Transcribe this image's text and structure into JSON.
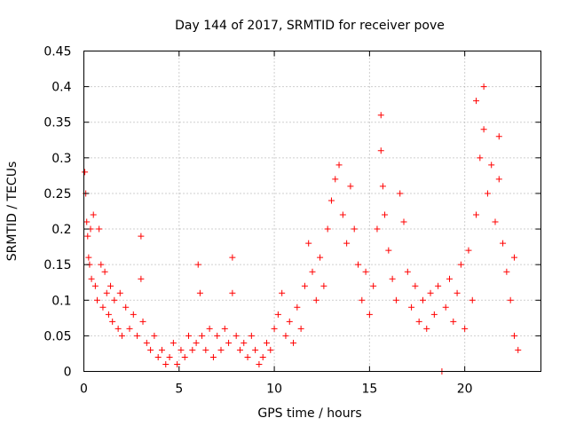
{
  "chart_data": {
    "type": "scatter",
    "title": "Day 144 of 2017, SRMTID for receiver pove",
    "xlabel": "GPS time / hours",
    "ylabel": "SRMTID / TECUs",
    "xlim": [
      0,
      24
    ],
    "ylim": [
      0,
      0.45
    ],
    "grid": true,
    "xticks": [
      0,
      5,
      10,
      15,
      20
    ],
    "xtick_labels": [
      "0",
      "5",
      "10",
      "15",
      "20"
    ],
    "yticks": [
      0,
      0.05,
      0.1,
      0.15,
      0.2,
      0.25,
      0.3,
      0.35,
      0.4,
      0.45
    ],
    "ytick_labels": [
      "0",
      "0.05",
      "0.1",
      "0.15",
      "0.2",
      "0.25",
      "0.3",
      "0.35",
      "0.4",
      "0.45"
    ],
    "marker": "plus",
    "color": "#ff0000",
    "series": [
      {
        "name": "SRMTID",
        "points": [
          [
            0.05,
            0.28
          ],
          [
            0.1,
            0.25
          ],
          [
            0.15,
            0.21
          ],
          [
            0.2,
            0.19
          ],
          [
            0.25,
            0.16
          ],
          [
            0.3,
            0.15
          ],
          [
            0.35,
            0.2
          ],
          [
            0.4,
            0.13
          ],
          [
            0.5,
            0.22
          ],
          [
            0.6,
            0.12
          ],
          [
            0.7,
            0.1
          ],
          [
            0.8,
            0.2
          ],
          [
            0.9,
            0.15
          ],
          [
            1.0,
            0.09
          ],
          [
            1.1,
            0.14
          ],
          [
            1.2,
            0.11
          ],
          [
            1.3,
            0.08
          ],
          [
            1.4,
            0.12
          ],
          [
            1.5,
            0.07
          ],
          [
            1.6,
            0.1
          ],
          [
            1.8,
            0.06
          ],
          [
            1.9,
            0.11
          ],
          [
            2.0,
            0.05
          ],
          [
            2.2,
            0.09
          ],
          [
            2.4,
            0.06
          ],
          [
            2.6,
            0.08
          ],
          [
            2.8,
            0.05
          ],
          [
            3.0,
            0.19
          ],
          [
            3.0,
            0.13
          ],
          [
            3.1,
            0.07
          ],
          [
            3.3,
            0.04
          ],
          [
            3.5,
            0.03
          ],
          [
            3.7,
            0.05
          ],
          [
            3.9,
            0.02
          ],
          [
            4.1,
            0.03
          ],
          [
            4.3,
            0.01
          ],
          [
            4.5,
            0.02
          ],
          [
            4.7,
            0.04
          ],
          [
            4.9,
            0.01
          ],
          [
            5.1,
            0.03
          ],
          [
            5.3,
            0.02
          ],
          [
            5.5,
            0.05
          ],
          [
            5.7,
            0.03
          ],
          [
            5.9,
            0.04
          ],
          [
            6.0,
            0.15
          ],
          [
            6.1,
            0.11
          ],
          [
            6.2,
            0.05
          ],
          [
            6.4,
            0.03
          ],
          [
            6.6,
            0.06
          ],
          [
            6.8,
            0.02
          ],
          [
            7.0,
            0.05
          ],
          [
            7.2,
            0.03
          ],
          [
            7.4,
            0.06
          ],
          [
            7.6,
            0.04
          ],
          [
            7.8,
            0.16
          ],
          [
            7.8,
            0.11
          ],
          [
            8.0,
            0.05
          ],
          [
            8.2,
            0.03
          ],
          [
            8.4,
            0.04
          ],
          [
            8.6,
            0.02
          ],
          [
            8.8,
            0.05
          ],
          [
            9.0,
            0.03
          ],
          [
            9.2,
            0.01
          ],
          [
            9.4,
            0.02
          ],
          [
            9.6,
            0.04
          ],
          [
            9.8,
            0.03
          ],
          [
            10.0,
            0.06
          ],
          [
            10.2,
            0.08
          ],
          [
            10.4,
            0.11
          ],
          [
            10.6,
            0.05
          ],
          [
            10.8,
            0.07
          ],
          [
            11.0,
            0.04
          ],
          [
            11.2,
            0.09
          ],
          [
            11.4,
            0.06
          ],
          [
            11.6,
            0.12
          ],
          [
            11.8,
            0.18
          ],
          [
            12.0,
            0.14
          ],
          [
            12.2,
            0.1
          ],
          [
            12.4,
            0.16
          ],
          [
            12.6,
            0.12
          ],
          [
            12.8,
            0.2
          ],
          [
            13.0,
            0.24
          ],
          [
            13.2,
            0.27
          ],
          [
            13.4,
            0.29
          ],
          [
            13.6,
            0.22
          ],
          [
            13.8,
            0.18
          ],
          [
            14.0,
            0.26
          ],
          [
            14.2,
            0.2
          ],
          [
            14.4,
            0.15
          ],
          [
            14.6,
            0.1
          ],
          [
            14.8,
            0.14
          ],
          [
            15.0,
            0.08
          ],
          [
            15.2,
            0.12
          ],
          [
            15.4,
            0.2
          ],
          [
            15.6,
            0.36
          ],
          [
            15.6,
            0.31
          ],
          [
            15.7,
            0.26
          ],
          [
            15.8,
            0.22
          ],
          [
            16.0,
            0.17
          ],
          [
            16.2,
            0.13
          ],
          [
            16.4,
            0.1
          ],
          [
            16.6,
            0.25
          ],
          [
            16.8,
            0.21
          ],
          [
            17.0,
            0.14
          ],
          [
            17.2,
            0.09
          ],
          [
            17.4,
            0.12
          ],
          [
            17.6,
            0.07
          ],
          [
            17.8,
            0.1
          ],
          [
            18.0,
            0.06
          ],
          [
            18.2,
            0.11
          ],
          [
            18.4,
            0.08
          ],
          [
            18.6,
            0.12
          ],
          [
            18.8,
            0.0
          ],
          [
            19.0,
            0.09
          ],
          [
            19.2,
            0.13
          ],
          [
            19.4,
            0.07
          ],
          [
            19.6,
            0.11
          ],
          [
            19.8,
            0.15
          ],
          [
            20.0,
            0.06
          ],
          [
            20.2,
            0.17
          ],
          [
            20.4,
            0.1
          ],
          [
            20.6,
            0.38
          ],
          [
            20.6,
            0.22
          ],
          [
            20.8,
            0.3
          ],
          [
            21.0,
            0.4
          ],
          [
            21.0,
            0.34
          ],
          [
            21.2,
            0.25
          ],
          [
            21.4,
            0.29
          ],
          [
            21.6,
            0.21
          ],
          [
            21.8,
            0.33
          ],
          [
            21.8,
            0.27
          ],
          [
            22.0,
            0.18
          ],
          [
            22.2,
            0.14
          ],
          [
            22.4,
            0.1
          ],
          [
            22.6,
            0.05
          ],
          [
            22.6,
            0.16
          ],
          [
            22.8,
            0.03
          ]
        ]
      }
    ]
  }
}
